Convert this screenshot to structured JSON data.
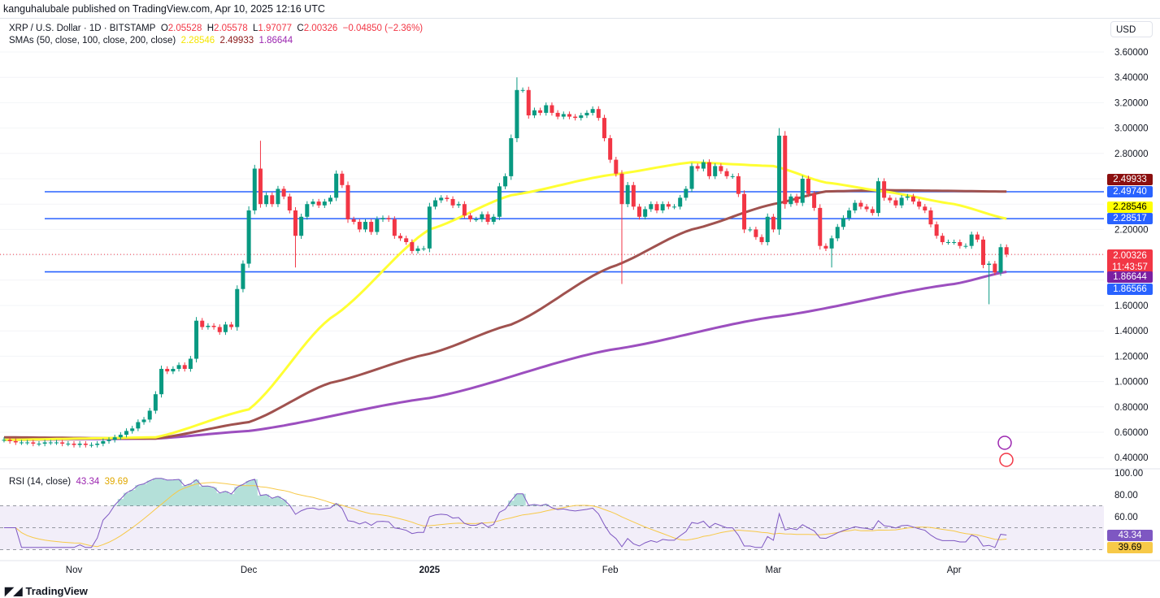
{
  "header": {
    "published": "kanguhalubale published on TradingView.com, Apr 10, 2025 12:16 UTC"
  },
  "legend": {
    "symbol": "XRP / U.S. Dollar · 1D · BITSTAMP",
    "o_label": "O",
    "o": "2.05528",
    "h_label": "H",
    "h": "2.05578",
    "l_label": "L",
    "l": "1.97077",
    "c_label": "C",
    "c": "2.00326",
    "change": "−0.04850 (−2.36%)",
    "sma_title": "SMAs (50, close, 100, close, 200, close)",
    "sma50": "2.28546",
    "sma100": "2.49933",
    "sma200": "1.86644",
    "rsi_title": "RSI (14, close)",
    "rsi": "43.34",
    "rsi_ma": "39.69"
  },
  "currency_button": "USD",
  "brand": "TradingView",
  "price_labels": {
    "sma100": "2.49933",
    "line1": "2.49740",
    "sma50": "2.28546",
    "line2": "2.28517",
    "last": "2.00326",
    "countdown": "11:43:57",
    "sma200": "1.86644",
    "line3": "1.86566"
  },
  "colors": {
    "up": "#089981",
    "down": "#f23645",
    "sma50": "#ffff33",
    "sma100": "#a0524f",
    "sma200": "#9c4fbf",
    "hline": "#2962ff",
    "rsi": "#7e57c2",
    "rsi_ma": "#f7c948"
  },
  "chart_data": {
    "type": "candlestick",
    "symbol": "XRP/USD",
    "interval": "1D",
    "x_tick_labels": [
      "Nov",
      "Dec",
      "2025",
      "Feb",
      "Mar",
      "Apr"
    ],
    "y_tick_labels": [
      "3.60000",
      "3.40000",
      "3.20000",
      "3.00000",
      "2.80000",
      "2.20000",
      "1.60000",
      "1.40000",
      "1.20000",
      "1.00000",
      "0.80000",
      "0.60000",
      "0.40000"
    ],
    "ylim": [
      0.4,
      3.6
    ],
    "date_range": [
      "2024-10-20",
      "2025-04-10"
    ],
    "close": [
      0.54,
      0.53,
      0.52,
      0.52,
      0.52,
      0.51,
      0.51,
      0.52,
      0.52,
      0.52,
      0.51,
      0.51,
      0.5,
      0.51,
      0.5,
      0.5,
      0.51,
      0.53,
      0.54,
      0.56,
      0.58,
      0.61,
      0.63,
      0.68,
      0.7,
      0.77,
      0.9,
      1.1,
      1.08,
      1.1,
      1.13,
      1.1,
      1.18,
      1.48,
      1.43,
      1.44,
      1.43,
      1.39,
      1.45,
      1.43,
      1.73,
      1.93,
      2.35,
      2.68,
      2.4,
      2.47,
      2.4,
      2.52,
      2.46,
      2.35,
      2.15,
      2.3,
      2.4,
      2.42,
      2.39,
      2.42,
      2.45,
      2.64,
      2.55,
      2.28,
      2.26,
      2.2,
      2.26,
      2.18,
      2.28,
      2.29,
      2.28,
      2.15,
      2.13,
      2.1,
      2.03,
      2.05,
      2.05,
      2.38,
      2.43,
      2.45,
      2.44,
      2.39,
      2.4,
      2.31,
      2.28,
      2.28,
      2.32,
      2.26,
      2.3,
      2.54,
      2.62,
      2.92,
      3.3,
      3.3,
      3.1,
      3.14,
      3.12,
      3.18,
      3.12,
      3.09,
      3.11,
      3.09,
      3.08,
      3.1,
      3.12,
      3.15,
      3.08,
      2.92,
      2.75,
      2.64,
      2.4,
      2.55,
      2.38,
      2.3,
      2.36,
      2.4,
      2.35,
      2.4,
      2.38,
      2.38,
      2.45,
      2.52,
      2.7,
      2.68,
      2.73,
      2.62,
      2.7,
      2.66,
      2.62,
      2.62,
      2.48,
      2.2,
      2.2,
      2.14,
      2.1,
      2.3,
      2.2,
      2.94,
      2.4,
      2.46,
      2.41,
      2.6,
      2.48,
      2.37,
      2.07,
      2.05,
      2.13,
      2.22,
      2.29,
      2.35,
      2.41,
      2.38,
      2.36,
      2.33,
      2.58,
      2.45,
      2.43,
      2.39,
      2.45,
      2.46,
      2.42,
      2.38,
      2.35,
      2.24,
      2.15,
      2.1,
      2.1,
      2.1,
      2.07,
      2.07,
      2.16,
      2.12,
      1.92,
      1.93,
      1.86,
      2.06,
      2.003
    ],
    "notable_wicks": [
      {
        "date": "2024-12-03",
        "high": 2.9
      },
      {
        "date": "2024-12-09",
        "low": 1.9
      },
      {
        "date": "2025-01-16",
        "high": 3.4
      },
      {
        "date": "2025-02-03",
        "low": 1.77
      },
      {
        "date": "2025-03-02",
        "high": 3.0
      },
      {
        "date": "2025-03-11",
        "low": 1.9
      },
      {
        "date": "2025-04-07",
        "low": 1.61
      }
    ],
    "horizontal_lines": [
      2.4974,
      2.28517,
      1.86566
    ],
    "sma50": [
      [
        "2024-10-20",
        0.54
      ],
      [
        "2024-11-15",
        0.56
      ],
      [
        "2024-12-01",
        0.78
      ],
      [
        "2024-12-15",
        1.5
      ],
      [
        "2025-01-01",
        2.2
      ],
      [
        "2025-01-15",
        2.47
      ],
      [
        "2025-02-01",
        2.63
      ],
      [
        "2025-02-15",
        2.73
      ],
      [
        "2025-03-01",
        2.7
      ],
      [
        "2025-03-10",
        2.57
      ],
      [
        "2025-03-20",
        2.5
      ],
      [
        "2025-04-01",
        2.4
      ],
      [
        "2025-04-10",
        2.285
      ]
    ],
    "sma100": [
      [
        "2024-10-20",
        0.56
      ],
      [
        "2024-11-15",
        0.55
      ],
      [
        "2024-12-01",
        0.68
      ],
      [
        "2024-12-15",
        0.99
      ],
      [
        "2025-01-01",
        1.22
      ],
      [
        "2025-01-15",
        1.45
      ],
      [
        "2025-02-01",
        1.9
      ],
      [
        "2025-02-15",
        2.2
      ],
      [
        "2025-03-01",
        2.4
      ],
      [
        "2025-03-10",
        2.5
      ],
      [
        "2025-03-20",
        2.51
      ],
      [
        "2025-04-10",
        2.499
      ]
    ],
    "sma200": [
      [
        "2024-10-20",
        0.54
      ],
      [
        "2024-11-15",
        0.55
      ],
      [
        "2024-12-01",
        0.61
      ],
      [
        "2025-01-01",
        0.87
      ],
      [
        "2025-02-01",
        1.25
      ],
      [
        "2025-03-01",
        1.51
      ],
      [
        "2025-04-01",
        1.77
      ],
      [
        "2025-04-10",
        1.866
      ]
    ],
    "rsi": {
      "period": 14,
      "ylim": [
        30,
        100
      ],
      "y_tick_labels": [
        "100.00",
        "80.00",
        "60.00"
      ],
      "band": [
        30,
        70
      ],
      "last": 43.34,
      "ma_last": 39.69
    }
  }
}
